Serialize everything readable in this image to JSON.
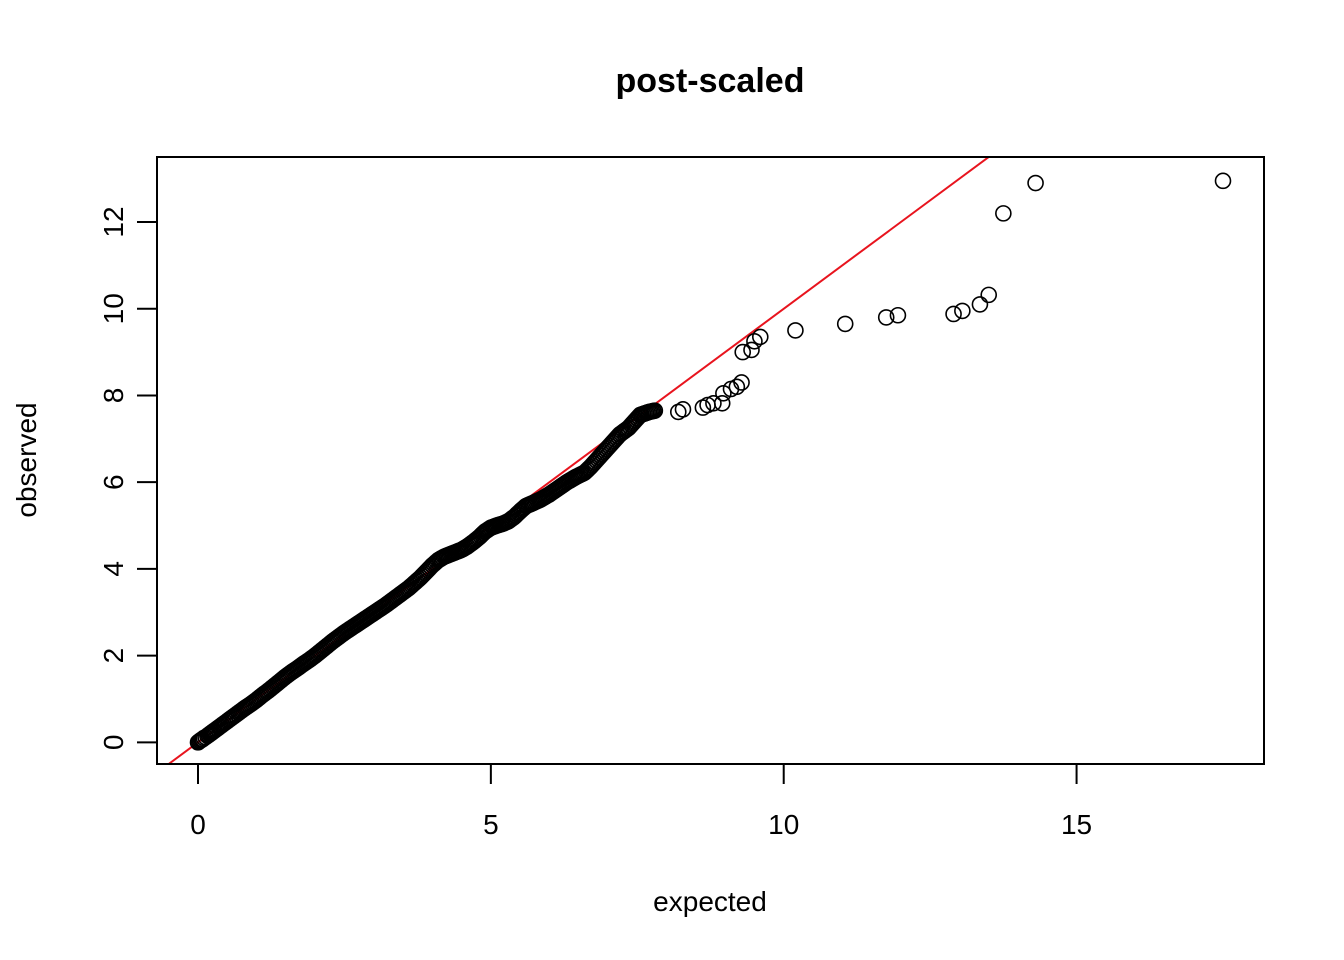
{
  "chart_data": {
    "type": "scatter",
    "title": "post-scaled",
    "xlabel": "expected",
    "ylabel": "observed",
    "xlim": [
      -0.7,
      18.2
    ],
    "ylim": [
      -0.5,
      13.5
    ],
    "x_ticks": [
      0,
      5,
      10,
      15
    ],
    "x_tick_labels": [
      "0",
      "5",
      "10",
      "15"
    ],
    "y_ticks": [
      0,
      2,
      4,
      6,
      8,
      10,
      12
    ],
    "y_tick_labels": [
      "0",
      "2",
      "4",
      "6",
      "8",
      "10",
      "12"
    ],
    "grid": false,
    "reference_line": {
      "slope": 1,
      "intercept": 0,
      "color": "#e8141e"
    },
    "point_color": "#000000",
    "points": [
      [
        0.0,
        0.0
      ],
      [
        0.02,
        0.02
      ],
      [
        0.04,
        0.04
      ],
      [
        0.06,
        0.06
      ],
      [
        0.08,
        0.07
      ],
      [
        0.1,
        0.1
      ],
      [
        0.13,
        0.12
      ],
      [
        0.16,
        0.15
      ],
      [
        0.2,
        0.19
      ],
      [
        0.24,
        0.23
      ],
      [
        0.28,
        0.27
      ],
      [
        0.33,
        0.32
      ],
      [
        0.38,
        0.37
      ],
      [
        0.44,
        0.43
      ],
      [
        0.5,
        0.49
      ],
      [
        0.57,
        0.56
      ],
      [
        0.64,
        0.63
      ],
      [
        0.72,
        0.71
      ],
      [
        0.8,
        0.79
      ],
      [
        0.9,
        0.88
      ],
      [
        1.0,
        0.98
      ],
      [
        1.1,
        1.09
      ],
      [
        1.2,
        1.19
      ],
      [
        1.3,
        1.3
      ],
      [
        1.4,
        1.41
      ],
      [
        1.5,
        1.52
      ],
      [
        1.6,
        1.62
      ],
      [
        1.7,
        1.71
      ],
      [
        1.8,
        1.81
      ],
      [
        1.9,
        1.9
      ],
      [
        2.0,
        2.0
      ],
      [
        2.1,
        2.11
      ],
      [
        2.2,
        2.22
      ],
      [
        2.3,
        2.33
      ],
      [
        2.4,
        2.43
      ],
      [
        2.5,
        2.53
      ],
      [
        2.6,
        2.62
      ],
      [
        2.7,
        2.71
      ],
      [
        2.8,
        2.8
      ],
      [
        2.9,
        2.89
      ],
      [
        3.0,
        2.98
      ],
      [
        3.1,
        3.07
      ],
      [
        3.2,
        3.16
      ],
      [
        3.3,
        3.26
      ],
      [
        3.4,
        3.36
      ],
      [
        3.5,
        3.46
      ],
      [
        3.6,
        3.56
      ],
      [
        3.7,
        3.68
      ],
      [
        3.8,
        3.8
      ],
      [
        3.9,
        3.94
      ],
      [
        4.0,
        4.08
      ],
      [
        4.1,
        4.2
      ],
      [
        4.2,
        4.28
      ],
      [
        4.35,
        4.36
      ],
      [
        4.5,
        4.44
      ],
      [
        4.6,
        4.52
      ],
      [
        4.7,
        4.62
      ],
      [
        4.8,
        4.73
      ],
      [
        4.9,
        4.86
      ],
      [
        5.0,
        4.95
      ],
      [
        5.1,
        5.0
      ],
      [
        5.2,
        5.04
      ],
      [
        5.3,
        5.1
      ],
      [
        5.4,
        5.2
      ],
      [
        5.5,
        5.33
      ],
      [
        5.6,
        5.45
      ],
      [
        5.72,
        5.52
      ],
      [
        5.85,
        5.6
      ],
      [
        6.0,
        5.72
      ],
      [
        6.15,
        5.86
      ],
      [
        6.3,
        6.0
      ],
      [
        6.45,
        6.12
      ],
      [
        6.6,
        6.22
      ],
      [
        6.7,
        6.35
      ],
      [
        6.8,
        6.5
      ],
      [
        6.9,
        6.65
      ],
      [
        7.0,
        6.8
      ],
      [
        7.1,
        6.95
      ],
      [
        7.2,
        7.1
      ],
      [
        7.35,
        7.25
      ],
      [
        7.45,
        7.4
      ],
      [
        7.55,
        7.55
      ],
      [
        7.7,
        7.62
      ],
      [
        7.8,
        7.65
      ],
      [
        8.2,
        7.62
      ],
      [
        8.28,
        7.68
      ],
      [
        8.62,
        7.72
      ],
      [
        8.7,
        7.78
      ],
      [
        8.8,
        7.82
      ],
      [
        8.95,
        7.82
      ],
      [
        8.97,
        8.05
      ],
      [
        9.1,
        8.15
      ],
      [
        9.2,
        8.2
      ],
      [
        9.28,
        8.3
      ],
      [
        9.3,
        9.0
      ],
      [
        9.45,
        9.05
      ],
      [
        9.5,
        9.25
      ],
      [
        9.6,
        9.35
      ],
      [
        10.2,
        9.5
      ],
      [
        11.05,
        9.65
      ],
      [
        11.75,
        9.8
      ],
      [
        11.95,
        9.85
      ],
      [
        12.9,
        9.88
      ],
      [
        13.05,
        9.95
      ],
      [
        13.35,
        10.1
      ],
      [
        13.5,
        10.32
      ],
      [
        13.75,
        12.2
      ],
      [
        14.3,
        12.9
      ],
      [
        17.5,
        12.95
      ]
    ]
  }
}
